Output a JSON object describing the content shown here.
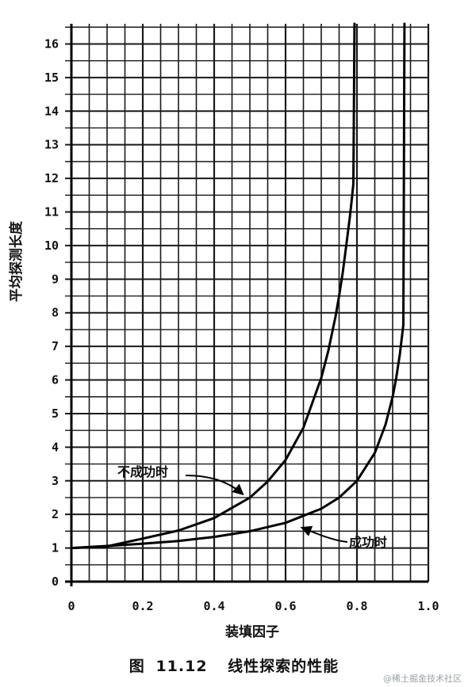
{
  "chart_data": {
    "type": "line",
    "xlabel": "装填因子",
    "ylabel": "平均探测长度",
    "xlim": [
      0,
      1.0
    ],
    "ylim": [
      0,
      16.6
    ],
    "xticks": [
      0,
      0.2,
      0.4,
      0.6,
      0.8,
      1.0
    ],
    "xtick_labels": [
      "0",
      "0.2",
      "0.4",
      "0.6",
      "0.8",
      "1.0"
    ],
    "yticks": [
      0,
      1,
      2,
      3,
      4,
      5,
      6,
      7,
      8,
      9,
      10,
      11,
      12,
      13,
      14,
      15,
      16
    ],
    "grid": true,
    "series": [
      {
        "name": "不成功时",
        "x": [
          0.0,
          0.1,
          0.2,
          0.3,
          0.4,
          0.5,
          0.55,
          0.6,
          0.65,
          0.7,
          0.72,
          0.74,
          0.75,
          0.76,
          0.77,
          0.78,
          0.785,
          0.79
        ],
        "y": [
          1.0,
          1.05,
          1.28,
          1.52,
          1.89,
          2.5,
          2.98,
          3.62,
          4.58,
          6.06,
          6.88,
          7.89,
          8.5,
          9.18,
          10.0,
          10.84,
          11.33,
          11.84
        ]
      },
      {
        "name": "成功时",
        "x": [
          0.0,
          0.1,
          0.2,
          0.3,
          0.4,
          0.5,
          0.6,
          0.7,
          0.75,
          0.8,
          0.85,
          0.88,
          0.9,
          0.91,
          0.92,
          0.93
        ],
        "y": [
          1.0,
          1.06,
          1.13,
          1.21,
          1.33,
          1.5,
          1.75,
          2.17,
          2.5,
          3.0,
          3.83,
          4.67,
          5.5,
          6.06,
          6.75,
          7.64
        ]
      }
    ],
    "annotations": [
      {
        "text": "不成功时",
        "series": 0,
        "point_x": 0.49,
        "point_y": 2.45
      },
      {
        "text": "成功时",
        "series": 1,
        "point_x": 0.64,
        "point_y": 1.8
      }
    ]
  },
  "caption": {
    "label": "图",
    "number": "11.12",
    "title": "线性探索的性能"
  },
  "watermark": "@稀土掘金技术社区"
}
